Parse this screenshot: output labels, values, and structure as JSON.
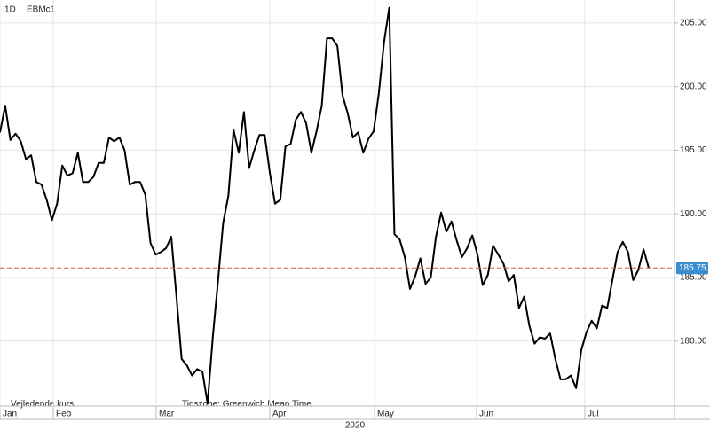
{
  "chart_data": {
    "type": "line",
    "interval": "1D",
    "symbol": "EBMc1",
    "footnote": "Vejledende kurs.",
    "timezone": "Tidszone: Greenwich Mean Time",
    "x_labels": [
      "Jan",
      "Feb",
      "Mar",
      "Apr",
      "May",
      "Jun",
      "Jul"
    ],
    "year_label": "2020",
    "series": [
      {
        "name": "EBMc1",
        "color": "#000000",
        "values": [
          196.4,
          198.5,
          195.8,
          196.3,
          195.7,
          194.3,
          194.6,
          192.5,
          192.3,
          191.1,
          189.5,
          190.8,
          193.8,
          193.0,
          193.2,
          194.8,
          192.5,
          192.5,
          192.9,
          194.0,
          194.0,
          196.0,
          195.7,
          196.0,
          195.0,
          192.3,
          192.5,
          192.5,
          191.5,
          187.7,
          186.8,
          187.0,
          187.3,
          188.2,
          183.5,
          178.6,
          178.1,
          177.3,
          177.8,
          177.6,
          175.1,
          180.3,
          184.7,
          189.3,
          191.4,
          196.6,
          194.8,
          198.0,
          193.6,
          195.0,
          196.2,
          196.2,
          193.2,
          190.8,
          191.1,
          195.3,
          195.5,
          197.4,
          198.0,
          197.1,
          194.8,
          196.5,
          198.5,
          203.8,
          203.8,
          203.2,
          199.3,
          197.9,
          196.0,
          196.4,
          194.8,
          195.9,
          196.5,
          199.5,
          203.5,
          206.2,
          188.4,
          188.0,
          186.6,
          184.1,
          185.1,
          186.5,
          184.5,
          185.0,
          188.2,
          190.1,
          188.6,
          189.4,
          187.9,
          186.6,
          187.3,
          188.3,
          186.8,
          184.4,
          185.2,
          187.5,
          186.8,
          186.1,
          184.7,
          185.2,
          182.6,
          183.5,
          181.2,
          179.8,
          180.3,
          180.2,
          180.6,
          178.6,
          177.0,
          177.0,
          177.3,
          176.3,
          179.3,
          180.7,
          181.6,
          181.0,
          182.8,
          182.6,
          184.8,
          187.0,
          187.8,
          187.0,
          184.8,
          185.6,
          187.2,
          185.75
        ]
      }
    ],
    "last_price": 185.75,
    "last_price_color": "#3a8fd0",
    "last_line_color": "#d9534f",
    "ylim": [
      174.9,
      206.8
    ],
    "yticks": [
      {
        "value": 180,
        "label": "180.00"
      },
      {
        "value": 185,
        "label": "185.00"
      },
      {
        "value": 190,
        "label": "190.00"
      },
      {
        "value": 195,
        "label": "195.00"
      },
      {
        "value": 200,
        "label": "200.00"
      },
      {
        "value": 205,
        "label": "205.00"
      }
    ],
    "grid": true
  }
}
